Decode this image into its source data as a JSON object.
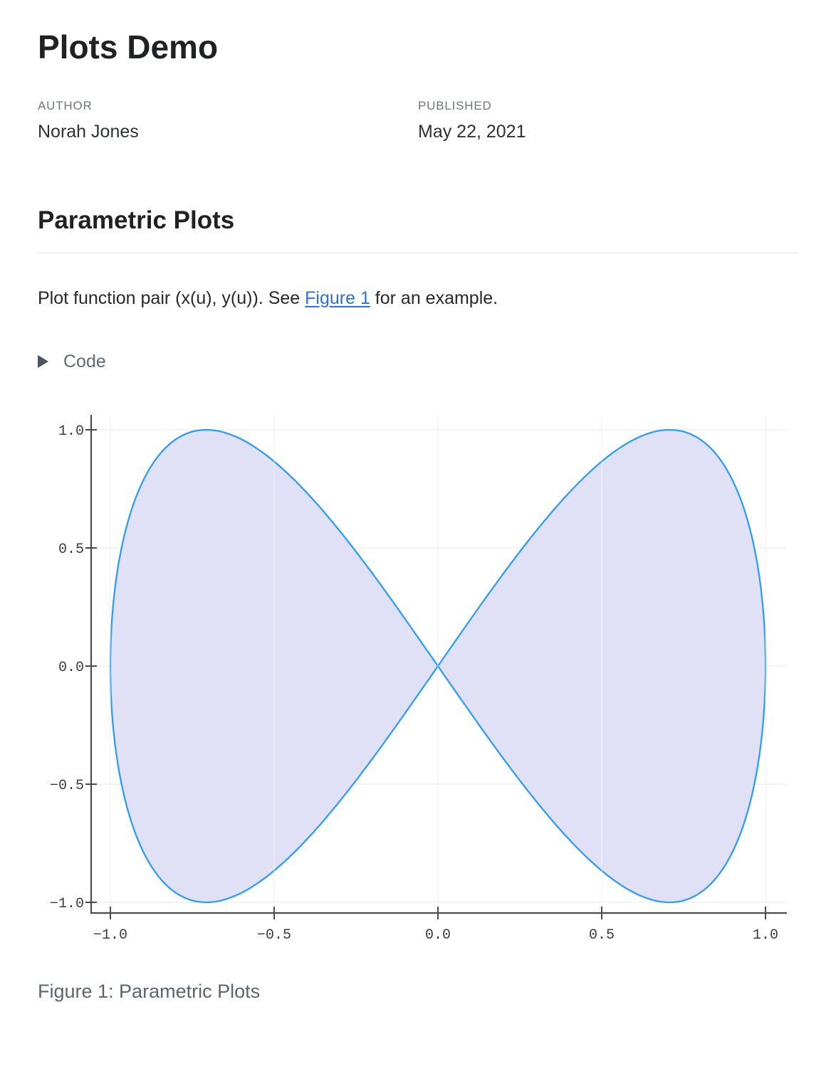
{
  "header": {
    "title": "Plots Demo",
    "author_label": "AUTHOR",
    "author": "Norah Jones",
    "published_label": "PUBLISHED",
    "published": "May 22, 2021"
  },
  "section": {
    "heading": "Parametric Plots",
    "body_before_link": "Plot function pair (x(u), y(u)). See ",
    "link_text": "Figure 1",
    "body_after_link": " for an example."
  },
  "code_fold": {
    "label": "Code",
    "icon": "triangle-right-icon"
  },
  "figure": {
    "caption": "Figure 1: Parametric Plots"
  },
  "colors": {
    "link": "#2e6fe0",
    "heading_rule": "#dee2e6",
    "meta_label": "#6d757c",
    "caption": "#5d656c"
  },
  "chart_data": {
    "type": "line",
    "subtype": "parametric",
    "curve": {
      "kind": "lissajous",
      "x_expr": "sin(u)",
      "y_expr": "sin(2u)",
      "x_freq": 1,
      "y_freq": 2
    },
    "u_range": [
      0,
      6.283185307179586
    ],
    "samples": 480,
    "xlim": [
      -1.0,
      1.0
    ],
    "ylim": [
      -1.0,
      1.0
    ],
    "x_ticks": [
      -1.0,
      -0.5,
      0.0,
      0.5,
      1.0
    ],
    "y_ticks": [
      -1.0,
      -0.5,
      0.0,
      0.5,
      1.0
    ],
    "x_tick_labels": [
      "−1.0",
      "−0.5",
      "0.0",
      "0.5",
      "1.0"
    ],
    "y_tick_labels": [
      "−1.0",
      "−0.5",
      "0.0",
      "0.5",
      "1.0"
    ],
    "grid": true,
    "legend": false,
    "title": "",
    "xlabel": "",
    "ylabel": "",
    "line_color": "#2e9df2",
    "fill_color": "#e0e1f6",
    "grid_color": "#eff0f4",
    "axis_color": "#4b4b4b",
    "tick_label_color": "#3a3d40"
  }
}
